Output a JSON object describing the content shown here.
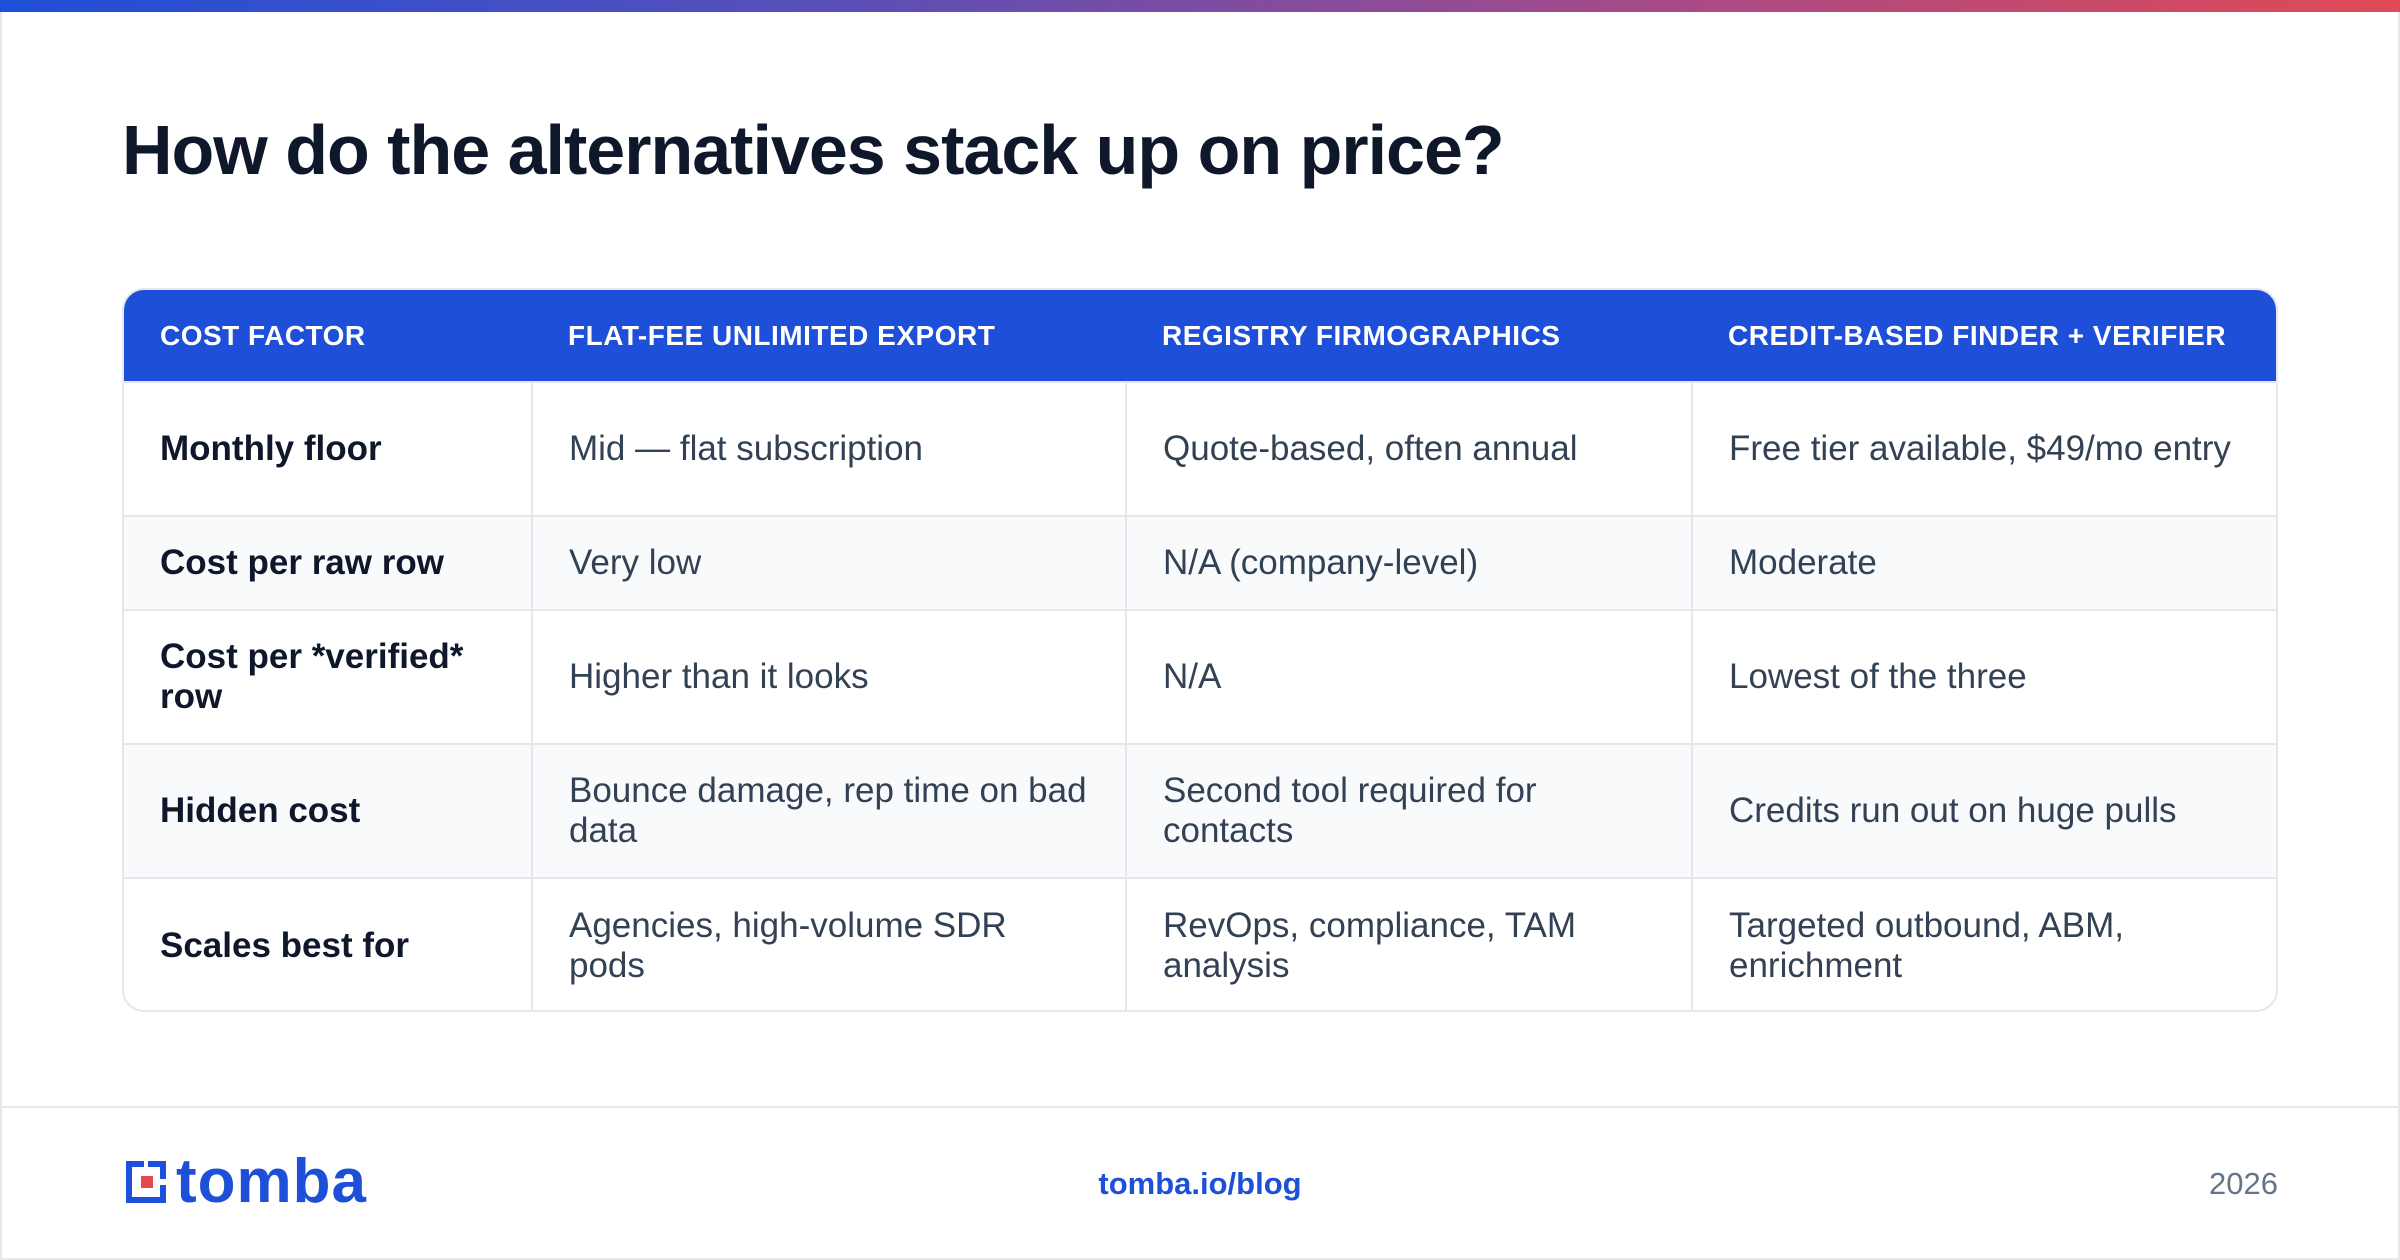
{
  "page": {
    "title": "How do the alternatives stack up on price?"
  },
  "table": {
    "headers": [
      "COST FACTOR",
      "FLAT-FEE UNLIMITED EXPORT",
      "REGISTRY FIRMOGRAPHICS",
      "CREDIT-BASED FINDER + VERIFIER"
    ],
    "rows": [
      [
        "Monthly floor",
        "Mid — flat subscription",
        "Quote-based, often annual",
        "Free tier available, $49/mo entry"
      ],
      [
        "Cost per raw row",
        "Very low",
        "N/A (company-level)",
        "Moderate"
      ],
      [
        "Cost per *verified* row",
        "Higher than it looks",
        "N/A",
        "Lowest of the three"
      ],
      [
        "Hidden cost",
        "Bounce damage, rep time on bad data",
        "Second tool required for contacts",
        "Credits run out on huge pulls"
      ],
      [
        "Scales best for",
        "Agencies, high-volume SDR pods",
        "RevOps, compliance, TAM analysis",
        "Targeted outbound, ABM, enrichment"
      ]
    ]
  },
  "footer": {
    "logo_text": "tomba",
    "link": "tomba.io/blog",
    "year": "2026"
  },
  "colors": {
    "accent": "#1d4fd8",
    "logo_red": "#e5484d",
    "title": "#0f172a",
    "gradient_start": "#1f4fd8",
    "gradient_end": "#e04a55"
  },
  "icons": {
    "logo": "tomba-logo-mark"
  }
}
